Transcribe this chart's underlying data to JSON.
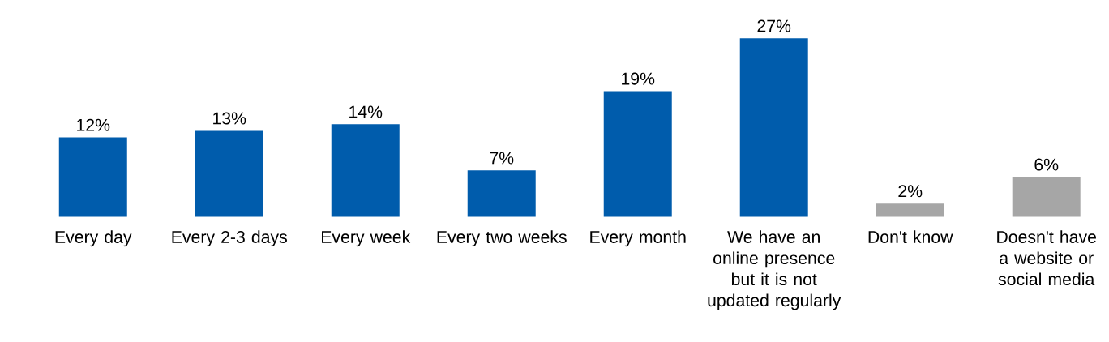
{
  "chart_data": {
    "type": "bar",
    "categories": [
      "Every day",
      "Every 2-3 days",
      "Every week",
      "Every two weeks",
      "Every month",
      "We have an online presence but it is not updated regularly",
      "Don't know",
      "Doesn't have a website or social media"
    ],
    "values": [
      12,
      13,
      14,
      7,
      19,
      27,
      2,
      6
    ],
    "colors": [
      "#005cac",
      "#005cac",
      "#005cac",
      "#005cac",
      "#005cac",
      "#005cac",
      "#a6a6a6",
      "#a6a6a6"
    ],
    "value_labels": [
      "12%",
      "13%",
      "14%",
      "7%",
      "19%",
      "27%",
      "2%",
      "6%"
    ]
  }
}
